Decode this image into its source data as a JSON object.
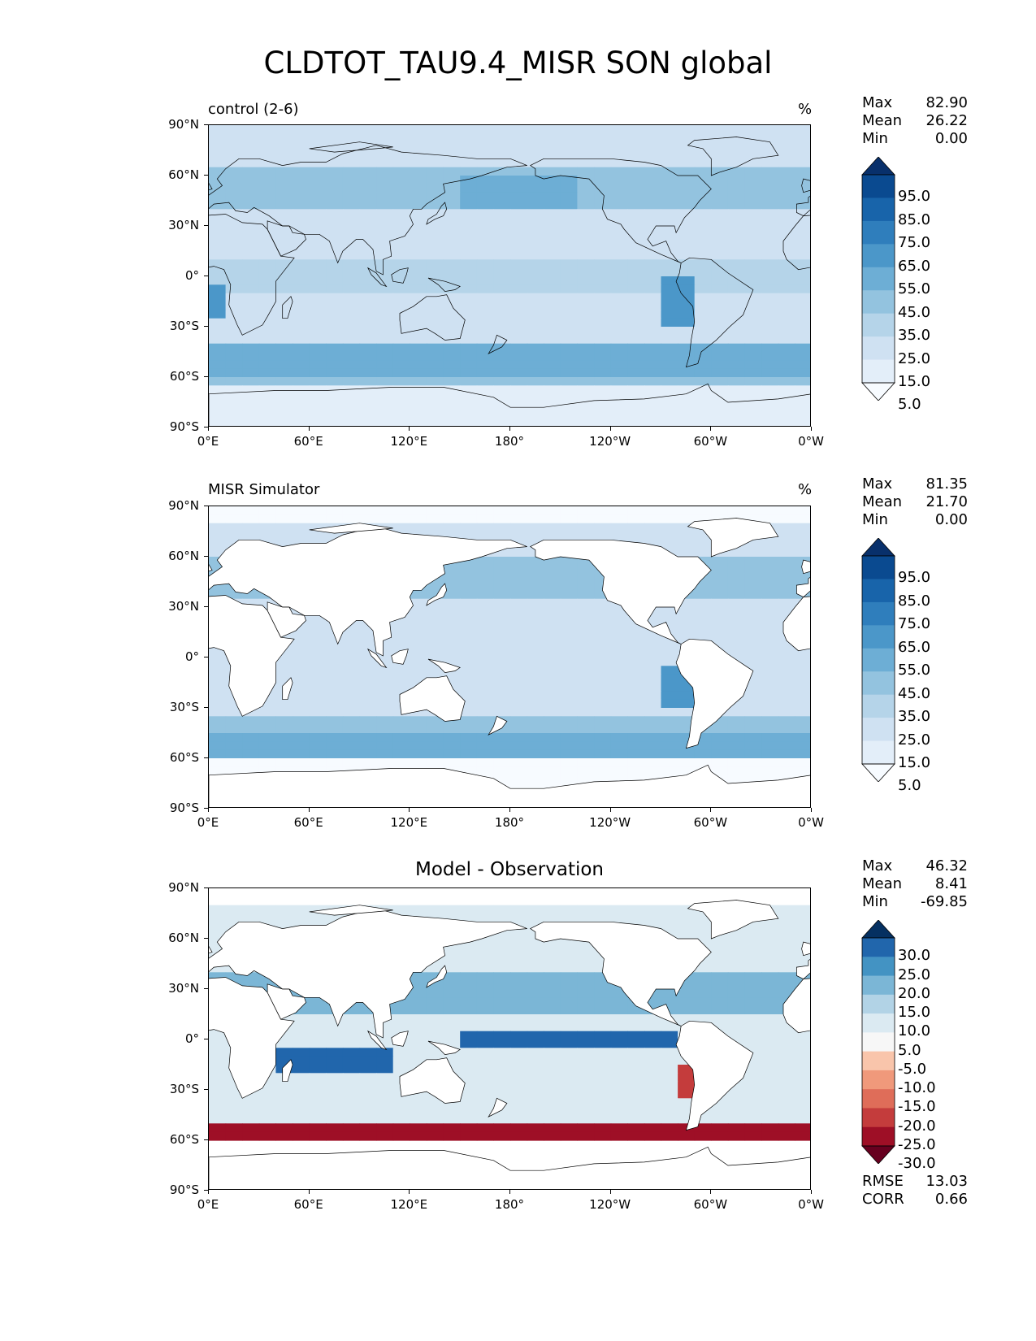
{
  "figure": {
    "title": "CLDTOT_TAU9.4_MISR SON global"
  },
  "axes": {
    "lat_ticks": [
      "90°N",
      "60°N",
      "30°N",
      "0°",
      "30°S",
      "60°S",
      "90°S"
    ],
    "lon_ticks": [
      "0°E",
      "60°E",
      "120°E",
      "180°",
      "120°W",
      "60°W",
      "0°W"
    ]
  },
  "panels": [
    {
      "id": "control",
      "left_title": "control (2-6)",
      "center_title": "",
      "units": "%",
      "stats": [
        {
          "label": "Max",
          "value": "82.90"
        },
        {
          "label": "Mean",
          "value": "26.22"
        },
        {
          "label": "Min",
          "value": "0.00"
        }
      ],
      "colorbar": {
        "colormap": "Blues",
        "levels": [
          "95.0",
          "85.0",
          "75.0",
          "65.0",
          "55.0",
          "45.0",
          "35.0",
          "25.0",
          "15.0",
          "5.0"
        ]
      },
      "extra_stats": []
    },
    {
      "id": "observation",
      "left_title": "MISR Simulator",
      "center_title": "",
      "units": "%",
      "stats": [
        {
          "label": "Max",
          "value": "81.35"
        },
        {
          "label": "Mean",
          "value": "21.70"
        },
        {
          "label": "Min",
          "value": "0.00"
        }
      ],
      "colorbar": {
        "colormap": "Blues",
        "levels": [
          "95.0",
          "85.0",
          "75.0",
          "65.0",
          "55.0",
          "45.0",
          "35.0",
          "25.0",
          "15.0",
          "5.0"
        ]
      },
      "extra_stats": []
    },
    {
      "id": "difference",
      "left_title": "",
      "center_title": "Model - Observation",
      "units": "",
      "stats": [
        {
          "label": "Max",
          "value": "46.32"
        },
        {
          "label": "Mean",
          "value": "8.41"
        },
        {
          "label": "Min",
          "value": "-69.85"
        }
      ],
      "colorbar": {
        "colormap": "RdBu",
        "levels": [
          "30.0",
          "25.0",
          "20.0",
          "15.0",
          "10.0",
          "5.0",
          "-5.0",
          "-10.0",
          "-15.0",
          "-20.0",
          "-25.0",
          "-30.0"
        ]
      },
      "extra_stats": [
        {
          "label": "RMSE",
          "value": "13.03"
        },
        {
          "label": "CORR",
          "value": "0.66"
        }
      ]
    }
  ],
  "colors": {
    "blues": [
      "#f7fbff",
      "#e3eef9",
      "#cfe1f2",
      "#b5d4e9",
      "#93c3df",
      "#6daed5",
      "#4b97c9",
      "#2f7ebc",
      "#1864aa",
      "#0a4a90",
      "#08306b"
    ],
    "rdbu": [
      "#67001f",
      "#9e0f26",
      "#c43c3c",
      "#df6d59",
      "#f0997b",
      "#f9c5ab",
      "#f7f7f7",
      "#dbeaf2",
      "#b2d3e6",
      "#7bb6d6",
      "#4393c3",
      "#2166ac",
      "#053061"
    ],
    "land": "#ffffff",
    "coast": "#000000"
  }
}
